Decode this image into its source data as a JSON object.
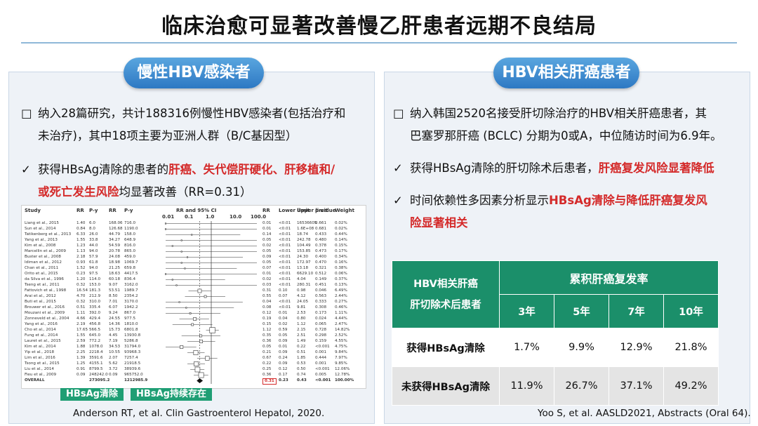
{
  "title": "临床治愈可显著改善慢乙肝患者远期不良结局",
  "left": {
    "pill": "慢性HBV感染者",
    "b1_marker": "□",
    "b1_l1": "纳入28篇研究，共计188316例慢性HBV感染者(包括治疗和",
    "b1_l2": "未治疗)，其中18项主要为亚洲人群（B/C基因型）",
    "b2_marker": "✓",
    "b2_p1": "获得HBsAg清除的患者的",
    "b2_red1": "肝癌、失代偿肝硬化、肝移植和/",
    "b2_red2": "或死亡发生风险",
    "b2_p2": "均显著改善（RR=0.31）",
    "forest": {
      "headers": [
        "Study",
        "RR",
        "P-y",
        "RR",
        "P-y",
        "RR and 95% CI",
        "RR",
        "Lower limit",
        "Upper limit",
        "p-value",
        "Weight"
      ],
      "scale": [
        "0.01",
        "0.1",
        "1.0",
        "10.0",
        "100.0"
      ],
      "rows": [
        [
          "Liang et al., 2015",
          "1.40",
          "6.0",
          "168.06",
          "716.0",
          "0.01",
          "<0.01",
          "16536605",
          "0.661",
          "0.02%"
        ],
        [
          "Sun et al., 2014",
          "0.84",
          "8.0",
          "126.68",
          "1190.0",
          "0.01",
          "<0.01",
          "1.6E+08",
          "0.681",
          "0.02%"
        ],
        [
          "Tatikenberg et al., 2013",
          "6.33",
          "26.0",
          "44.79",
          "158.0",
          "0.14",
          "<0.01",
          "18.74",
          "0.433",
          "0.44%"
        ],
        [
          "Yang et al., 2013",
          "1.55",
          "33.8",
          "34.27",
          "648.9",
          "0.05",
          "<0.01",
          "242.78",
          "0.480",
          "0.14%"
        ],
        [
          "Kim et al., 2008",
          "1.23",
          "44.0",
          "54.59",
          "816.0",
          "0.02",
          "<0.01",
          "104.49",
          "0.378",
          "0.15%"
        ],
        [
          "Marcellin et al., 2009",
          "1.13",
          "94.0",
          "20.78",
          "865.0",
          "0.05",
          "<0.01",
          "153.85",
          "0.473",
          "0.17%"
        ],
        [
          "Buster et al., 2008",
          "2.18",
          "57.9",
          "24.08",
          "459.0",
          "0.09",
          "<0.01",
          "24.30",
          "0.400",
          "0.34%"
        ],
        [
          "Idiman et al., 2012",
          "0.93",
          "61.8",
          "18.98",
          "1069.7",
          "0.05",
          "<0.01",
          "172.97",
          "0.470",
          "0.16%"
        ],
        [
          "Chan et al., 2011",
          "1.52",
          "94.0",
          "21.25",
          "659.8",
          "0.07",
          "<0.01",
          "13.18",
          "0.321",
          "0.38%"
        ],
        [
          "Orito et al., 2015",
          "0.23",
          "97.5",
          "18.63",
          "4417.5",
          "0.01",
          "<0.01",
          "6629.10",
          "0.512",
          "0.06%"
        ],
        [
          "da Silva et al., 1996",
          "1.20",
          "114.0",
          "60.18",
          "836.4",
          "0.02",
          "<0.01",
          "4.04",
          "0.149",
          "0.37%"
        ],
        [
          "Tseng et al., 2011",
          "0.32",
          "153.0",
          "9.07",
          "3162.0",
          "0.03",
          "<0.01",
          "280.31",
          "0.451",
          "0.13%"
        ],
        [
          "Fattovich et al., 1998",
          "16.54",
          "181.3",
          "53.51",
          "1989.7",
          "0.31",
          "0.10",
          "0.98",
          "0.046",
          "6.49%"
        ],
        [
          "Arai et al., 2012",
          "4.70",
          "212.9",
          "8.50",
          "2354.2",
          "0.55",
          "0.07",
          "4.12",
          "0.563",
          "2.44%"
        ],
        [
          "Buti et al., 2015",
          "0.32",
          "310.0",
          "7.01",
          "3170.0",
          "0.04",
          "<0.01",
          "24.05",
          "0.333",
          "0.27%"
        ],
        [
          "Brouwer et al., 2016",
          "0.51",
          "335.4",
          "6.07",
          "1942.2",
          "0.08",
          "<0.01",
          "9.81",
          "0.308",
          "0.46%"
        ],
        [
          "Mouzani et al., 2009",
          "1.11",
          "392.0",
          "9.24",
          "867.0",
          "0.12",
          "0.01",
          "2.53",
          "0.173",
          "1.11%"
        ],
        [
          "Zonneveld et al., 2004",
          "4.66",
          "429.4",
          "24.55",
          "977.5",
          "0.19",
          "0.04",
          "0.80",
          "0.024",
          "4.44%"
        ],
        [
          "Yang et al., 2016",
          "2.19",
          "456.8",
          "14.36",
          "1810.0",
          "0.15",
          "0.02",
          "1.12",
          "0.065",
          "2.47%"
        ],
        [
          "Cho et al., 2014",
          "17.65",
          "566.5",
          "15.73",
          "6801.8",
          "1.12",
          "0.59",
          "2.15",
          "0.728",
          "14.82%"
        ],
        [
          "Fung et al., 2014",
          "1.55",
          "645.0",
          "4.45",
          "13930.8",
          "0.35",
          "0.05",
          "2.51",
          "0.298",
          "2.52%"
        ],
        [
          "Lauret et al., 2015",
          "2.59",
          "772.2",
          "7.19",
          "5286.8",
          "0.36",
          "0.09",
          "1.49",
          "0.159",
          "4.55%"
        ],
        [
          "Kim et al., 2014",
          "1.88",
          "1078.0",
          "34.53",
          "31794.0",
          "0.05",
          "0.01",
          "0.22",
          "<0.001",
          "4.75%"
        ],
        [
          "Yip et al., 2018",
          "2.25",
          "2218.4",
          "10.55",
          "93968.3",
          "0.21",
          "0.09",
          "0.51",
          "0.001",
          "9.84%"
        ],
        [
          "Lim et al., 2016",
          "1.39",
          "3591.6",
          "2.07",
          "7257.4",
          "0.67",
          "0.24",
          "1.85",
          "0.444",
          "7.97%"
        ],
        [
          "Tsong et al., 2015",
          "1.25",
          "4155.1",
          "5.62",
          "21918.5",
          "0.22",
          "0.09",
          "0.53",
          "0.001",
          "9.85%"
        ],
        [
          "Liu et al., 2014",
          "0.91",
          "8799.5",
          "3.72",
          "38939.6",
          "0.25",
          "0.12",
          "0.50",
          "<0.001",
          "12.06%"
        ],
        [
          "Fieu et al., 2009",
          "0.09",
          "248242.0",
          "0.09",
          "965752.0",
          "0.36",
          "0.17",
          "0.74",
          "0.005",
          "12.78%"
        ],
        [
          "OVERALL",
          "",
          "273095.2",
          "",
          "1212985.9",
          "0.31",
          "0.23",
          "0.43",
          "<0.001",
          "100.00%"
        ]
      ]
    },
    "legend_cleared": "HBsAg清除",
    "legend_persistent": "HBsAg持续存在",
    "citation": "Anderson RT, et al. Clin Gastroenterol Hepatol, 2020."
  },
  "right": {
    "pill": "HBV相关肝癌患者",
    "b1_marker": "□",
    "b1_l1": "纳入韩国2520名接受肝切除治疗的HBV相关肝癌患者，其",
    "b1_l2": "巴塞罗那肝癌 (BCLC) 分期为0或A，中位随访时间为6.9年。",
    "b2_marker": "✓",
    "b2_p1": "获得HBsAg清除的肝切除术后患者，",
    "b2_red": "肝癌复发风险显著降低",
    "b3_marker": "✓",
    "b3_p1": "时间依赖性多因素分析显示",
    "b3_red1": "HBsAg清除与降低肝癌复发风",
    "b3_red2": "险显著相关",
    "table": {
      "corner_l1": "HBV相关肝癌",
      "corner_l2": "肝切除术后患者",
      "span_header": "累积肝癌复发率",
      "years": [
        "3年",
        "5年",
        "7年",
        "10年"
      ],
      "rows": [
        {
          "label": "获得HBsAg清除",
          "values": [
            "1.7%",
            "9.9%",
            "12.9%",
            "21.8%"
          ]
        },
        {
          "label": "未获得HBsAg清除",
          "values": [
            "11.9%",
            "26.7%",
            "37.1%",
            "49.2%"
          ]
        }
      ]
    },
    "citation": "Yoo S, et al. AASLD2021, Abstracts (Oral 64)."
  },
  "colors": {
    "accent_blue": "#2d78c3",
    "green": "#1b8f6a",
    "red": "#d42a2a"
  }
}
